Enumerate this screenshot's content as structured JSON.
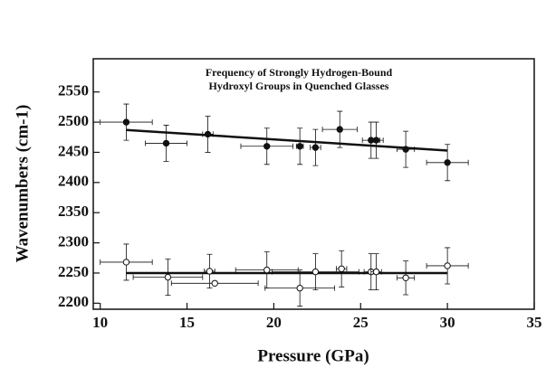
{
  "chart_data": {
    "type": "scatter",
    "annotations": [
      "Frequency of Strongly Hydrogen-Bound",
      "Hydroxyl Groups in Quenched Glasses"
    ],
    "x_label": "Pressure (GPa)",
    "y_label": "Wavenumbers (cm-1)",
    "xlim": [
      9.6,
      35
    ],
    "ylim": [
      2190,
      2605
    ],
    "xticks": [
      10,
      15,
      20,
      25,
      30,
      35
    ],
    "yticks": [
      2200,
      2250,
      2300,
      2350,
      2400,
      2450,
      2500,
      2550
    ],
    "series": [
      {
        "marker": "filled",
        "color": "#111111",
        "x": [
          11.5,
          13.8,
          16.2,
          19.6,
          21.5,
          22.4,
          23.8,
          25.6,
          25.9,
          27.6,
          30
        ],
        "values": [
          2500,
          2465,
          2480,
          2460,
          2460,
          2458,
          2488,
          2470,
          2470,
          2455,
          2433
        ],
        "xerr": [
          1.5,
          1.2,
          0.3,
          1.5,
          0.2,
          0.3,
          1.0,
          0.5,
          0.4,
          0.5,
          1.2
        ],
        "yerr": [
          30,
          30,
          30,
          30,
          30,
          30,
          30,
          30,
          30,
          30,
          30
        ]
      },
      {
        "marker": "open",
        "color": "#111111",
        "x": [
          11.5,
          13.9,
          16.3,
          16.6,
          19.6,
          21.5,
          22.4,
          23.9,
          25.6,
          25.9,
          27.6,
          30
        ],
        "values": [
          2268,
          2243,
          2253,
          2233,
          2255,
          2225,
          2252,
          2257,
          2252,
          2252,
          2242,
          2262
        ],
        "xerr": [
          1.5,
          2.0,
          0.3,
          2.5,
          1.8,
          2.0,
          2.5,
          0.3,
          0.4,
          0.3,
          0.5,
          1.2
        ],
        "yerr": [
          30,
          30,
          28,
          0,
          30,
          30,
          30,
          30,
          30,
          30,
          28,
          30
        ]
      }
    ],
    "fits": [
      {
        "color": "#111111",
        "x": [
          11.5,
          30
        ],
        "values": [
          2487,
          2453
        ]
      },
      {
        "color": "#111111",
        "x": [
          11.5,
          30
        ],
        "values": [
          2250,
          2250
        ]
      }
    ]
  }
}
